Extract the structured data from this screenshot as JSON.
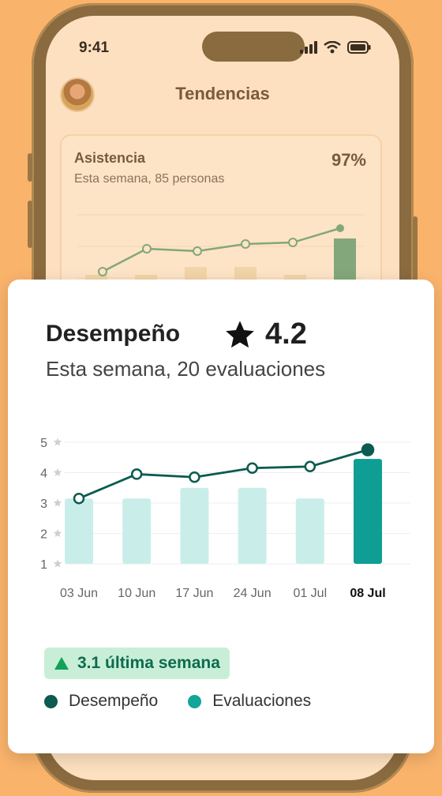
{
  "status_bar": {
    "time": "9:41"
  },
  "app": {
    "title": "Tendencias"
  },
  "background_card": {
    "title": "Asistencia",
    "subtitle": "Esta semana, 85 personas",
    "percent": "97%"
  },
  "card": {
    "title": "Desempeño",
    "rating": "4.2",
    "subtitle": "Esta semana, 20 evaluaciones",
    "badge_text": "3.1 última semana",
    "legend": [
      {
        "label": "Desempeño",
        "color": "#0b5b50"
      },
      {
        "label": "Evaluaciones",
        "color": "#12a59a"
      }
    ]
  },
  "chart_data": {
    "type": "bar",
    "categories": [
      "03 Jun",
      "10 Jun",
      "17 Jun",
      "24 Jun",
      "01 Jul",
      "08 Jul"
    ],
    "highlight_category": "08 Jul",
    "y_ticks": [
      1,
      2,
      3,
      4,
      5
    ],
    "ylim": [
      1,
      5
    ],
    "series": [
      {
        "name": "Evaluaciones",
        "type": "bar",
        "values": [
          3.15,
          3.15,
          3.5,
          3.5,
          3.15,
          4.45
        ],
        "color": "#c9eeea",
        "highlight_color": "#0f9e93"
      },
      {
        "name": "Desempeño",
        "type": "line",
        "values": [
          3.15,
          3.95,
          3.85,
          4.15,
          4.2,
          4.75
        ],
        "color": "#0b5b50"
      }
    ]
  }
}
